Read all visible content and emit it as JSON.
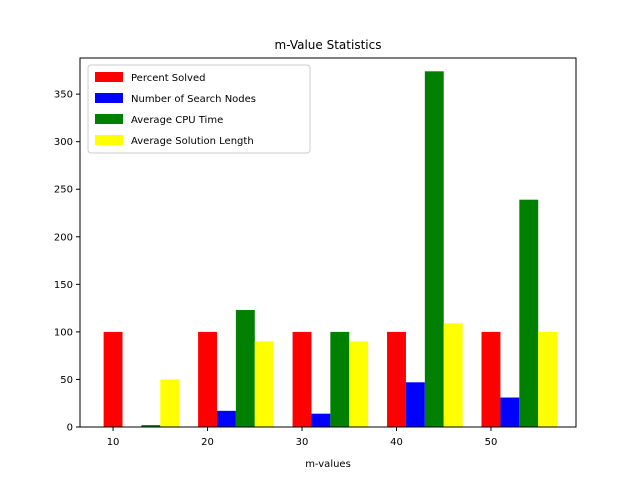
{
  "chart_data": {
    "type": "bar",
    "title": "m-Value Statistics",
    "xlabel": "m-values",
    "ylabel": "",
    "categories": [
      10,
      20,
      30,
      40,
      50
    ],
    "x_ticks": [
      "10",
      "20",
      "30",
      "40",
      "50"
    ],
    "xlim": [
      6.5,
      59
    ],
    "ylim": [
      0,
      388
    ],
    "y_ticks": [
      "0",
      "50",
      "100",
      "150",
      "200",
      "250",
      "300",
      "350"
    ],
    "y_tick_values": [
      0,
      50,
      100,
      150,
      200,
      250,
      300,
      350
    ],
    "bar_width": 2,
    "grid": false,
    "legend_position": "top-left",
    "series": [
      {
        "name": "Percent Solved",
        "color": "#ff0000",
        "offset": 0,
        "values": [
          100,
          100,
          100,
          100,
          100
        ]
      },
      {
        "name": "Number of Search Nodes",
        "color": "#0000ff",
        "offset": 2,
        "values": [
          0,
          17,
          14,
          47,
          31
        ]
      },
      {
        "name": "Average CPU Time",
        "color": "#008000",
        "offset": 4,
        "values": [
          2,
          123,
          100,
          374,
          239
        ]
      },
      {
        "name": "Average Solution Length",
        "color": "#ffff00",
        "offset": 6,
        "values": [
          50,
          90,
          90,
          109,
          100
        ]
      }
    ]
  }
}
